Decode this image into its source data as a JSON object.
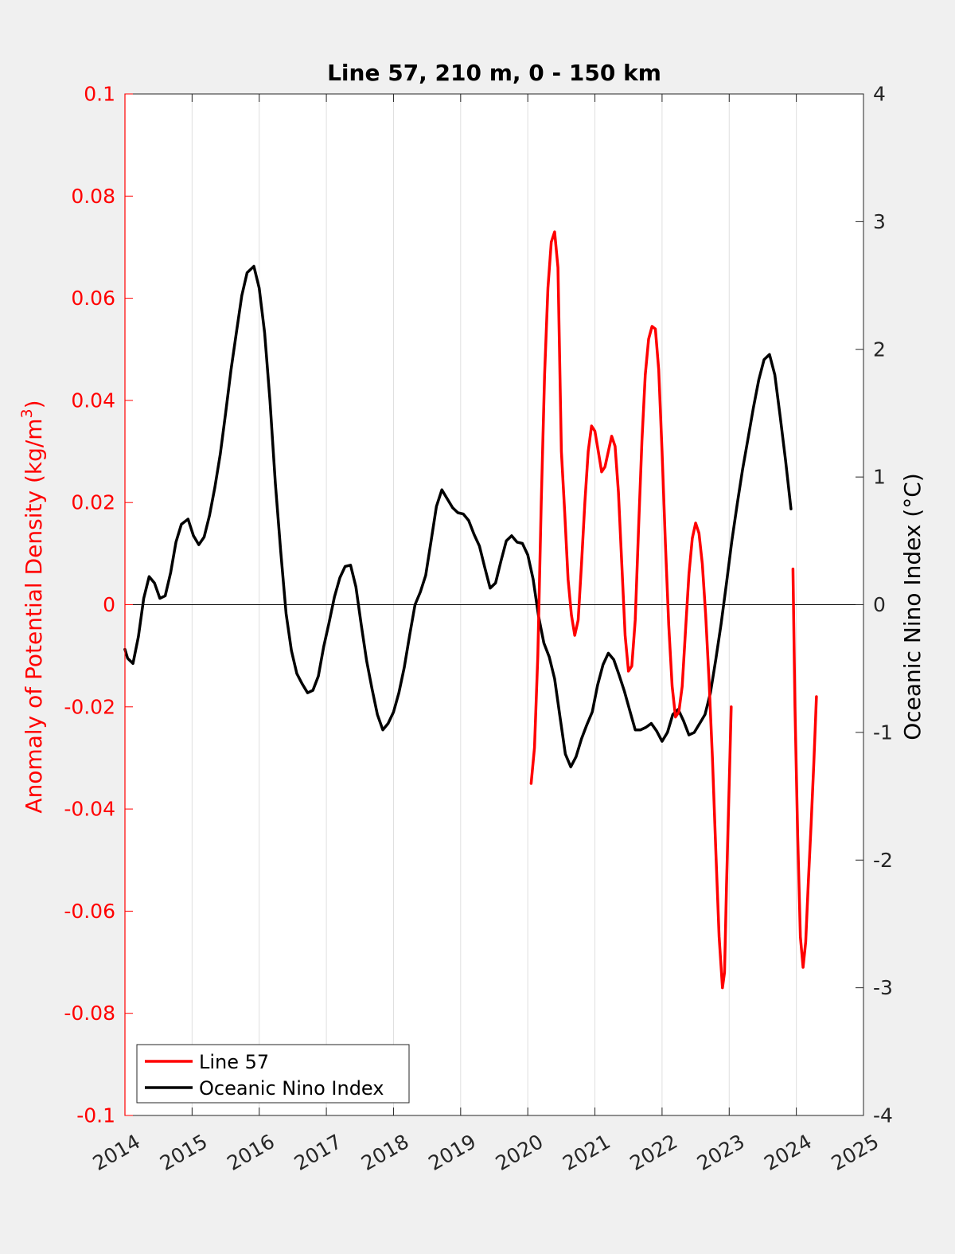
{
  "chart_data": {
    "type": "line",
    "title": "Line 57, 210 m, 0 - 150 km",
    "ylabel_left": "Anomaly of Potential Density (kg/m",
    "ylabel_left_sup": "3",
    "ylabel_left_close": ")",
    "ylabel_right": "Oceanic Nino Index (°C)",
    "xlim": [
      2014,
      2025
    ],
    "ylim_left": [
      -0.1,
      0.1
    ],
    "ylim_right": [
      -4,
      4
    ],
    "x_ticks": [
      "2014",
      "2015",
      "2016",
      "2017",
      "2018",
      "2019",
      "2020",
      "2021",
      "2022",
      "2023",
      "2024",
      "2025"
    ],
    "y_ticks_left": [
      "0.1",
      "0.08",
      "0.06",
      "0.04",
      "0.02",
      "0",
      "-0.02",
      "-0.04",
      "-0.06",
      "-0.08",
      "-0.1"
    ],
    "y_ticks_right": [
      "4",
      "3",
      "2",
      "1",
      "0",
      "-1",
      "-2",
      "-3",
      "-4"
    ],
    "grid": "vertical",
    "zero_line": true,
    "legend_position": "bottom-left",
    "colors": {
      "line57": "#ff0000",
      "oni": "#000000",
      "left_axis": "#ff0000",
      "right_axis": "#000000"
    },
    "series": [
      {
        "name": "Line 57",
        "axis": "left",
        "segments": [
          [
            [
              2020.05,
              -0.035
            ],
            [
              2020.1,
              -0.028
            ],
            [
              2020.15,
              -0.01
            ],
            [
              2020.2,
              0.02
            ],
            [
              2020.25,
              0.045
            ],
            [
              2020.3,
              0.062
            ],
            [
              2020.35,
              0.071
            ],
            [
              2020.4,
              0.073
            ],
            [
              2020.45,
              0.066
            ],
            [
              2020.5,
              0.03
            ],
            [
              2020.55,
              0.018
            ],
            [
              2020.6,
              0.005
            ],
            [
              2020.65,
              -0.002
            ],
            [
              2020.7,
              -0.006
            ],
            [
              2020.75,
              -0.003
            ],
            [
              2020.8,
              0.008
            ],
            [
              2020.85,
              0.02
            ],
            [
              2020.9,
              0.03
            ],
            [
              2020.95,
              0.035
            ],
            [
              2021.0,
              0.034
            ],
            [
              2021.05,
              0.03
            ],
            [
              2021.1,
              0.026
            ],
            [
              2021.15,
              0.027
            ],
            [
              2021.2,
              0.03
            ],
            [
              2021.25,
              0.033
            ],
            [
              2021.3,
              0.031
            ],
            [
              2021.35,
              0.022
            ],
            [
              2021.4,
              0.008
            ],
            [
              2021.45,
              -0.006
            ],
            [
              2021.5,
              -0.013
            ],
            [
              2021.55,
              -0.012
            ],
            [
              2021.6,
              -0.003
            ],
            [
              2021.65,
              0.015
            ],
            [
              2021.7,
              0.032
            ],
            [
              2021.75,
              0.045
            ],
            [
              2021.8,
              0.052
            ],
            [
              2021.85,
              0.0545
            ],
            [
              2021.9,
              0.054
            ],
            [
              2021.95,
              0.046
            ],
            [
              2022.0,
              0.03
            ],
            [
              2022.05,
              0.012
            ],
            [
              2022.1,
              -0.004
            ],
            [
              2022.15,
              -0.016
            ],
            [
              2022.2,
              -0.022
            ],
            [
              2022.25,
              -0.021
            ],
            [
              2022.3,
              -0.016
            ],
            [
              2022.35,
              -0.005
            ],
            [
              2022.4,
              0.006
            ],
            [
              2022.45,
              0.013
            ],
            [
              2022.5,
              0.016
            ],
            [
              2022.55,
              0.014
            ],
            [
              2022.6,
              0.008
            ],
            [
              2022.65,
              -0.002
            ],
            [
              2022.7,
              -0.015
            ],
            [
              2022.75,
              -0.03
            ],
            [
              2022.8,
              -0.048
            ],
            [
              2022.85,
              -0.065
            ],
            [
              2022.9,
              -0.075
            ],
            [
              2022.93,
              -0.072
            ],
            [
              2022.96,
              -0.055
            ],
            [
              2023.0,
              -0.035
            ],
            [
              2023.03,
              -0.02
            ]
          ],
          [
            [
              2023.95,
              0.007
            ],
            [
              2023.98,
              -0.02
            ],
            [
              2024.02,
              -0.045
            ],
            [
              2024.06,
              -0.065
            ],
            [
              2024.1,
              -0.071
            ],
            [
              2024.14,
              -0.066
            ],
            [
              2024.18,
              -0.054
            ],
            [
              2024.22,
              -0.043
            ],
            [
              2024.26,
              -0.031
            ],
            [
              2024.3,
              -0.018
            ]
          ]
        ]
      },
      {
        "name": "Oceanic Nino Index",
        "axis": "right",
        "segments": [
          [
            [
              2014.0,
              -0.35
            ],
            [
              2014.04,
              -0.42
            ],
            [
              2014.12,
              -0.46
            ],
            [
              2014.2,
              -0.25
            ],
            [
              2014.28,
              0.05
            ],
            [
              2014.36,
              0.22
            ],
            [
              2014.44,
              0.17
            ],
            [
              2014.52,
              0.05
            ],
            [
              2014.6,
              0.07
            ],
            [
              2014.68,
              0.25
            ],
            [
              2014.76,
              0.49
            ],
            [
              2014.84,
              0.63
            ],
            [
              2014.94,
              0.67
            ],
            [
              2015.02,
              0.54
            ],
            [
              2015.1,
              0.47
            ],
            [
              2015.18,
              0.53
            ],
            [
              2015.26,
              0.7
            ],
            [
              2015.34,
              0.92
            ],
            [
              2015.42,
              1.18
            ],
            [
              2015.5,
              1.5
            ],
            [
              2015.58,
              1.84
            ],
            [
              2015.66,
              2.13
            ],
            [
              2015.74,
              2.42
            ],
            [
              2015.82,
              2.6
            ],
            [
              2015.92,
              2.65
            ],
            [
              2016.0,
              2.48
            ],
            [
              2016.08,
              2.13
            ],
            [
              2016.16,
              1.6
            ],
            [
              2016.24,
              0.95
            ],
            [
              2016.32,
              0.42
            ],
            [
              2016.4,
              -0.07
            ],
            [
              2016.48,
              -0.36
            ],
            [
              2016.56,
              -0.54
            ],
            [
              2016.64,
              -0.62
            ],
            [
              2016.72,
              -0.69
            ],
            [
              2016.8,
              -0.67
            ],
            [
              2016.88,
              -0.56
            ],
            [
              2016.96,
              -0.33
            ],
            [
              2017.04,
              -0.14
            ],
            [
              2017.12,
              0.06
            ],
            [
              2017.2,
              0.21
            ],
            [
              2017.28,
              0.3
            ],
            [
              2017.36,
              0.31
            ],
            [
              2017.44,
              0.14
            ],
            [
              2017.52,
              -0.16
            ],
            [
              2017.6,
              -0.44
            ],
            [
              2017.68,
              -0.66
            ],
            [
              2017.76,
              -0.86
            ],
            [
              2017.84,
              -0.98
            ],
            [
              2017.92,
              -0.93
            ],
            [
              2018.0,
              -0.84
            ],
            [
              2018.08,
              -0.69
            ],
            [
              2018.16,
              -0.49
            ],
            [
              2018.24,
              -0.24
            ],
            [
              2018.32,
              0.0
            ],
            [
              2018.4,
              0.1
            ],
            [
              2018.48,
              0.23
            ],
            [
              2018.56,
              0.5
            ],
            [
              2018.64,
              0.77
            ],
            [
              2018.72,
              0.9
            ],
            [
              2018.8,
              0.83
            ],
            [
              2018.88,
              0.76
            ],
            [
              2018.96,
              0.72
            ],
            [
              2019.04,
              0.71
            ],
            [
              2019.12,
              0.66
            ],
            [
              2019.2,
              0.55
            ],
            [
              2019.28,
              0.46
            ],
            [
              2019.36,
              0.29
            ],
            [
              2019.44,
              0.13
            ],
            [
              2019.52,
              0.17
            ],
            [
              2019.6,
              0.34
            ],
            [
              2019.68,
              0.5
            ],
            [
              2019.76,
              0.54
            ],
            [
              2019.84,
              0.49
            ],
            [
              2019.92,
              0.48
            ],
            [
              2020.0,
              0.39
            ],
            [
              2020.08,
              0.2
            ],
            [
              2020.16,
              -0.09
            ],
            [
              2020.24,
              -0.3
            ],
            [
              2020.32,
              -0.41
            ],
            [
              2020.4,
              -0.58
            ],
            [
              2020.48,
              -0.88
            ],
            [
              2020.56,
              -1.17
            ],
            [
              2020.64,
              -1.27
            ],
            [
              2020.72,
              -1.19
            ],
            [
              2020.8,
              -1.05
            ],
            [
              2020.88,
              -0.94
            ],
            [
              2020.96,
              -0.84
            ],
            [
              2021.04,
              -0.63
            ],
            [
              2021.12,
              -0.47
            ],
            [
              2021.2,
              -0.38
            ],
            [
              2021.28,
              -0.43
            ],
            [
              2021.36,
              -0.55
            ],
            [
              2021.44,
              -0.68
            ],
            [
              2021.52,
              -0.83
            ],
            [
              2021.6,
              -0.98
            ],
            [
              2021.68,
              -0.98
            ],
            [
              2021.76,
              -0.96
            ],
            [
              2021.84,
              -0.93
            ],
            [
              2021.92,
              -0.99
            ],
            [
              2022.0,
              -1.07
            ],
            [
              2022.08,
              -1.0
            ],
            [
              2022.16,
              -0.86
            ],
            [
              2022.24,
              -0.82
            ],
            [
              2022.32,
              -0.91
            ],
            [
              2022.4,
              -1.02
            ],
            [
              2022.48,
              -1.0
            ],
            [
              2022.56,
              -0.93
            ],
            [
              2022.64,
              -0.86
            ],
            [
              2022.72,
              -0.69
            ],
            [
              2022.8,
              -0.43
            ],
            [
              2022.88,
              -0.15
            ],
            [
              2022.96,
              0.17
            ],
            [
              2023.04,
              0.5
            ],
            [
              2023.12,
              0.79
            ],
            [
              2023.2,
              1.06
            ],
            [
              2023.28,
              1.3
            ],
            [
              2023.36,
              1.54
            ],
            [
              2023.44,
              1.76
            ],
            [
              2023.52,
              1.92
            ],
            [
              2023.6,
              1.96
            ],
            [
              2023.68,
              1.8
            ],
            [
              2023.76,
              1.47
            ],
            [
              2023.84,
              1.13
            ],
            [
              2023.92,
              0.75
            ]
          ]
        ]
      }
    ]
  },
  "legend": {
    "items": [
      {
        "label": "Line 57",
        "color": "#ff0000"
      },
      {
        "label": "Oceanic Nino Index",
        "color": "#000000"
      }
    ]
  }
}
